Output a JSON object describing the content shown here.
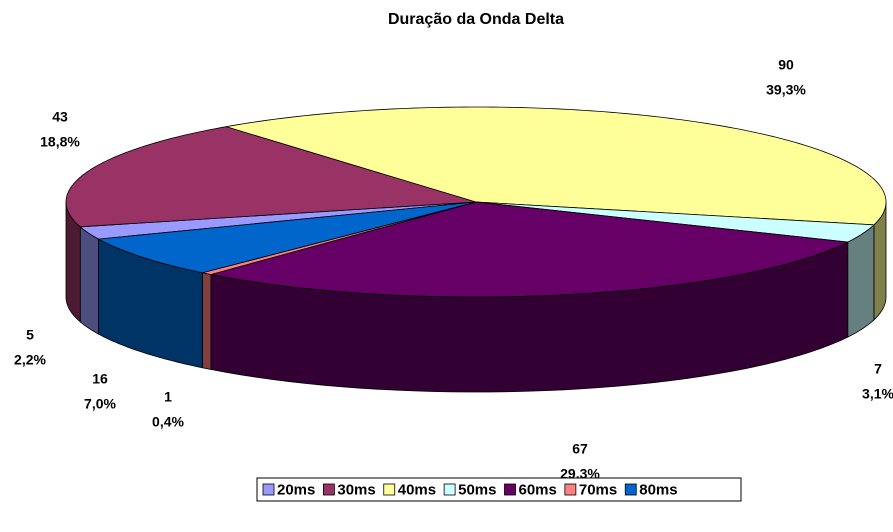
{
  "chart_data": {
    "type": "pie",
    "title": "Duração da Onda Delta",
    "categories": [
      "20ms",
      "30ms",
      "40ms",
      "50ms",
      "60ms",
      "70ms",
      "80ms"
    ],
    "values": [
      5,
      43,
      90,
      7,
      67,
      1,
      16
    ],
    "percent_labels": [
      "2,2%",
      "18,8%",
      "39,3%",
      "3,1%",
      "29,3%",
      "0,4%",
      "7,0%"
    ],
    "colors": [
      "#9999ff",
      "#993366",
      "#ffff99",
      "#ccffff",
      "#660066",
      "#ff8080",
      "#0066cc"
    ],
    "legend": "bottom"
  }
}
